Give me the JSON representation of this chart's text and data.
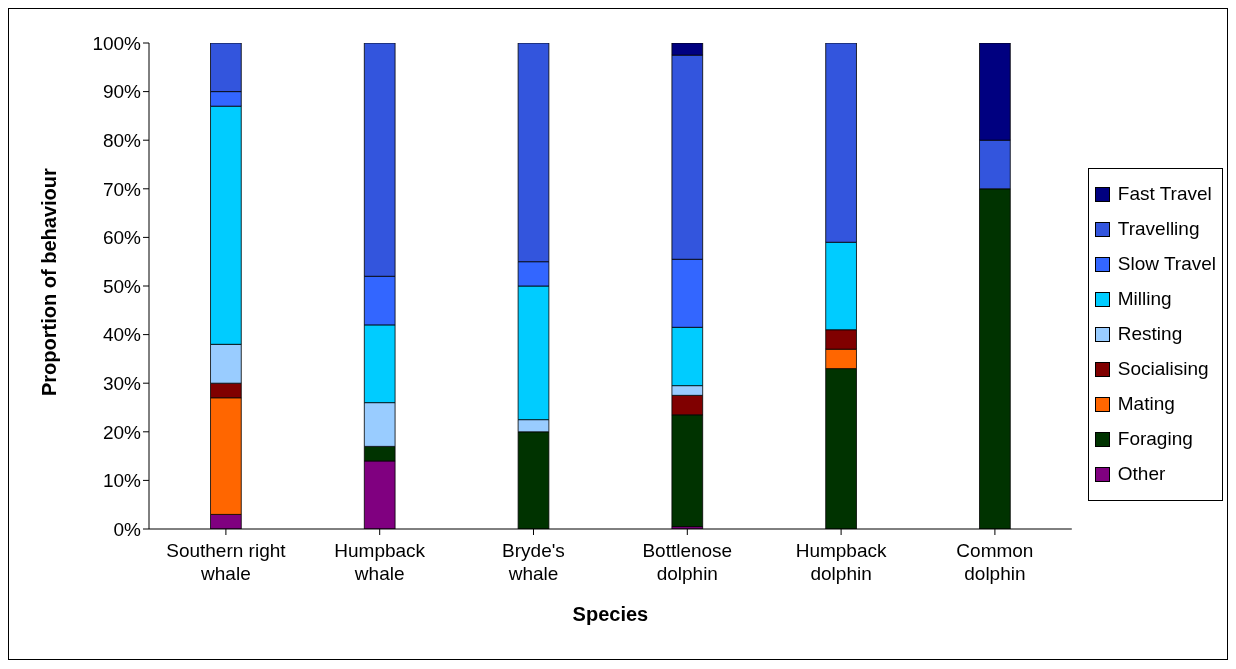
{
  "chart_data": {
    "type": "bar",
    "stacked": true,
    "xlabel": "Species",
    "ylabel": "Proportion of behaviour",
    "categories": [
      "Southern right whale",
      "Humpback whale",
      "Bryde's whale",
      "Bottlenose dolphin",
      "Humpback dolphin",
      "Common dolphin"
    ],
    "series": [
      {
        "name": "Other",
        "color": "#800080",
        "values": [
          3,
          14,
          0,
          0.5,
          0,
          0
        ]
      },
      {
        "name": "Foraging",
        "color": "#003300",
        "values": [
          0,
          3,
          20,
          23,
          33,
          70
        ]
      },
      {
        "name": "Mating",
        "color": "#ff6600",
        "values": [
          24,
          0,
          0,
          0,
          4,
          0
        ]
      },
      {
        "name": "Socialising",
        "color": "#800000",
        "values": [
          3,
          0,
          0,
          4,
          4,
          0
        ]
      },
      {
        "name": "Resting",
        "color": "#99ccff",
        "values": [
          8,
          9,
          2.5,
          2,
          0,
          0
        ]
      },
      {
        "name": "Milling",
        "color": "#00ccff",
        "values": [
          49,
          16,
          27.5,
          12,
          18,
          0
        ]
      },
      {
        "name": "Slow Travel",
        "color": "#3366ff",
        "values": [
          3,
          10,
          5,
          14,
          0,
          0
        ]
      },
      {
        "name": "Travelling",
        "color": "#3355dd",
        "values": [
          10,
          48,
          45,
          42,
          41,
          10
        ]
      },
      {
        "name": "Fast Travel",
        "color": "#000080",
        "values": [
          0,
          0,
          0,
          2.5,
          0,
          20
        ]
      }
    ],
    "ylim": [
      0,
      100
    ],
    "yticks": [
      {
        "value": 0,
        "label": "0%"
      },
      {
        "value": 10,
        "label": "10%"
      },
      {
        "value": 20,
        "label": "20%"
      },
      {
        "value": 30,
        "label": "30%"
      },
      {
        "value": 40,
        "label": "40%"
      },
      {
        "value": 50,
        "label": "50%"
      },
      {
        "value": 60,
        "label": "60%"
      },
      {
        "value": 70,
        "label": "70%"
      },
      {
        "value": 80,
        "label": "80%"
      },
      {
        "value": 90,
        "label": "90%"
      },
      {
        "value": 100,
        "label": "100%"
      }
    ],
    "grid": false,
    "legend": "right"
  }
}
